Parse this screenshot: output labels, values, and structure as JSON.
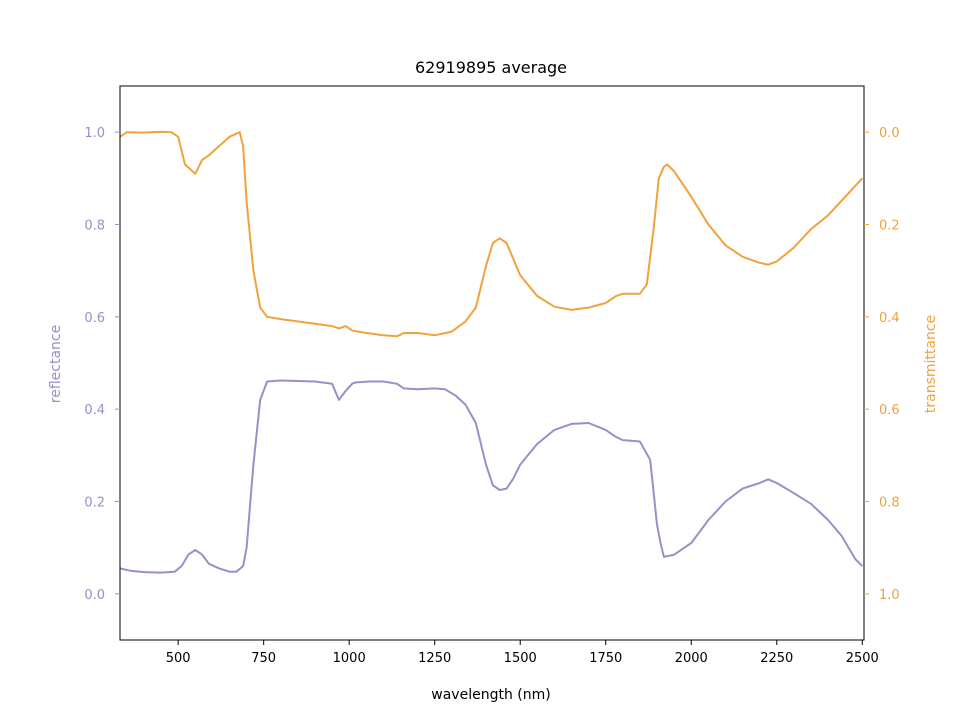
{
  "chart_data": {
    "type": "line",
    "title": "62919895 average",
    "xlabel": "wavelength (nm)",
    "xlim": [
      330,
      2505
    ],
    "xticks": [
      "500",
      "750",
      "1000",
      "1250",
      "1500",
      "1750",
      "2000",
      "2250",
      "2500"
    ],
    "grid": false,
    "colors": {
      "reflectance": "#9890c6",
      "transmittance": "#f0a33c"
    },
    "left_axis": {
      "label": "reflectance",
      "ylim": [
        -0.1,
        1.1
      ],
      "ticks": [
        "0.0",
        "0.2",
        "0.4",
        "0.6",
        "0.8",
        "1.0"
      ]
    },
    "right_axis": {
      "label": "transmittance",
      "ylim": [
        1.1,
        -0.1
      ],
      "inverted": true,
      "ticks": [
        "0.0",
        "0.2",
        "0.4",
        "0.6",
        "0.8",
        "1.0"
      ]
    },
    "series": [
      {
        "name": "reflectance",
        "axis": "left",
        "x": [
          330,
          360,
          400,
          450,
          490,
          510,
          530,
          550,
          570,
          590,
          620,
          650,
          670,
          690,
          700,
          720,
          740,
          760,
          800,
          900,
          950,
          970,
          990,
          1010,
          1020,
          1060,
          1100,
          1140,
          1160,
          1200,
          1250,
          1280,
          1310,
          1340,
          1370,
          1400,
          1420,
          1440,
          1460,
          1480,
          1500,
          1550,
          1600,
          1650,
          1700,
          1750,
          1780,
          1800,
          1850,
          1880,
          1900,
          1910,
          1920,
          1950,
          2000,
          2050,
          2100,
          2150,
          2200,
          2225,
          2250,
          2300,
          2350,
          2400,
          2440,
          2460,
          2480,
          2500
        ],
        "y": [
          0.055,
          0.05,
          0.047,
          0.046,
          0.048,
          0.06,
          0.085,
          0.095,
          0.085,
          0.065,
          0.055,
          0.048,
          0.048,
          0.06,
          0.1,
          0.28,
          0.42,
          0.46,
          0.462,
          0.46,
          0.455,
          0.42,
          0.44,
          0.456,
          0.458,
          0.46,
          0.46,
          0.455,
          0.445,
          0.443,
          0.445,
          0.443,
          0.43,
          0.41,
          0.37,
          0.28,
          0.235,
          0.225,
          0.228,
          0.25,
          0.28,
          0.325,
          0.355,
          0.368,
          0.37,
          0.355,
          0.34,
          0.333,
          0.33,
          0.29,
          0.15,
          0.11,
          0.08,
          0.085,
          0.11,
          0.16,
          0.2,
          0.228,
          0.24,
          0.248,
          0.24,
          0.218,
          0.195,
          0.16,
          0.125,
          0.1,
          0.075,
          0.06
        ]
      },
      {
        "name": "transmittance",
        "axis": "right",
        "x": [
          330,
          350,
          400,
          450,
          480,
          500,
          520,
          550,
          570,
          590,
          620,
          650,
          680,
          690,
          700,
          720,
          740,
          760,
          800,
          900,
          950,
          970,
          990,
          1010,
          1050,
          1100,
          1140,
          1160,
          1200,
          1250,
          1300,
          1340,
          1370,
          1400,
          1420,
          1440,
          1460,
          1480,
          1500,
          1550,
          1600,
          1650,
          1700,
          1750,
          1780,
          1800,
          1850,
          1870,
          1890,
          1905,
          1920,
          1930,
          1950,
          2000,
          2050,
          2100,
          2150,
          2200,
          2225,
          2250,
          2300,
          2350,
          2400,
          2450,
          2500
        ],
        "y": [
          0.01,
          0.0,
          0.001,
          -0.001,
          0.0,
          0.01,
          0.07,
          0.09,
          0.06,
          0.05,
          0.03,
          0.01,
          0.0,
          0.03,
          0.15,
          0.3,
          0.38,
          0.4,
          0.405,
          0.415,
          0.42,
          0.425,
          0.42,
          0.43,
          0.435,
          0.44,
          0.442,
          0.435,
          0.435,
          0.44,
          0.432,
          0.41,
          0.38,
          0.29,
          0.24,
          0.23,
          0.24,
          0.275,
          0.31,
          0.355,
          0.378,
          0.385,
          0.38,
          0.37,
          0.355,
          0.35,
          0.35,
          0.33,
          0.21,
          0.1,
          0.075,
          0.07,
          0.085,
          0.14,
          0.2,
          0.245,
          0.27,
          0.283,
          0.287,
          0.28,
          0.25,
          0.21,
          0.18,
          0.14,
          0.1
        ]
      }
    ]
  }
}
